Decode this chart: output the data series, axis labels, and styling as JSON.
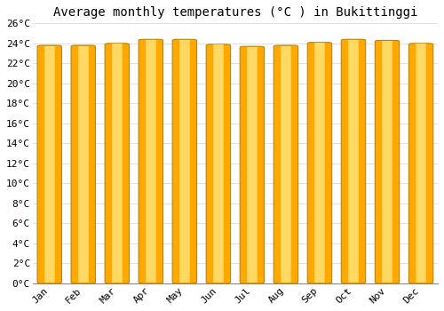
{
  "title": "Average monthly temperatures (°C ) in Bukittinggi",
  "months": [
    "Jan",
    "Feb",
    "Mar",
    "Apr",
    "May",
    "Jun",
    "Jul",
    "Aug",
    "Sep",
    "Oct",
    "Nov",
    "Dec"
  ],
  "temperatures": [
    23.8,
    23.8,
    24.0,
    24.4,
    24.4,
    23.9,
    23.7,
    23.8,
    24.1,
    24.4,
    24.3,
    24.0
  ],
  "bar_color": "#FFA800",
  "bar_edge_color": "#B8860B",
  "bar_highlight": "#FFE070",
  "background_color": "#FFFFFF",
  "grid_color": "#DDDDDD",
  "ylim": [
    0,
    26
  ],
  "yticks": [
    0,
    2,
    4,
    6,
    8,
    10,
    12,
    14,
    16,
    18,
    20,
    22,
    24,
    26
  ],
  "ytick_labels": [
    "0°C",
    "2°C",
    "4°C",
    "6°C",
    "8°C",
    "10°C",
    "12°C",
    "14°C",
    "16°C",
    "18°C",
    "20°C",
    "22°C",
    "24°C",
    "26°C"
  ],
  "title_fontsize": 10,
  "tick_fontsize": 8,
  "font_family": "monospace"
}
